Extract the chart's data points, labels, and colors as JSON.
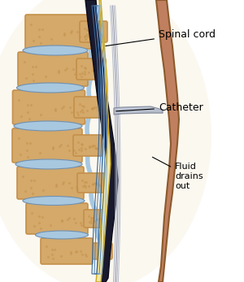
{
  "bg_color": "#ffffff",
  "spine_color": "#d4a96a",
  "spine_dark": "#c4904a",
  "disc_color": "#a8c8e0",
  "canal_color": "#1a1a2e",
  "cord_color": "#f0e8b0",
  "cord_outline": "#c8a820",
  "catheter_color": "#b0b8c8",
  "skin_color": "#c08060",
  "shadow_color": "#e8d0a0",
  "label_color": "#000000",
  "labels": {
    "spinal_cord": "Spinal cord",
    "catheter": "Catheter",
    "fluid": "Fluid\ndrains\nout"
  },
  "label_fontsize": 9,
  "figsize": [
    3.0,
    3.47
  ],
  "dpi": 100
}
